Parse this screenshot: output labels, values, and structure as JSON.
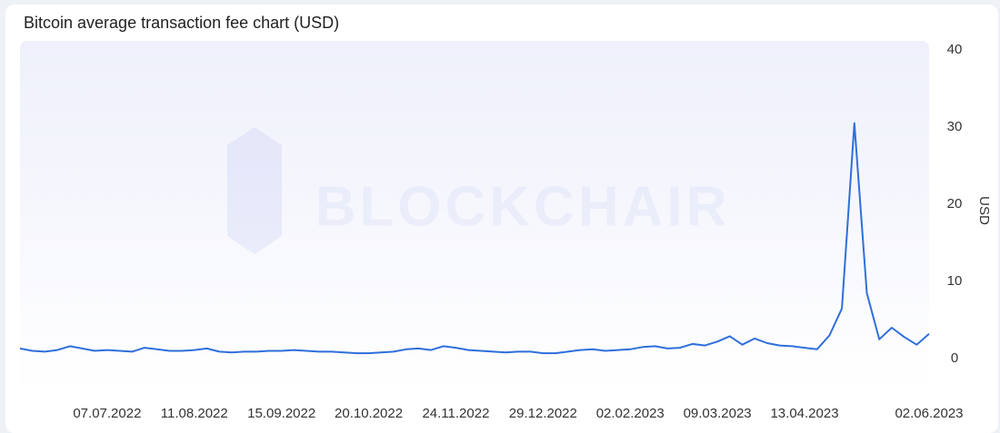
{
  "chart_data": {
    "type": "line",
    "title": "Bitcoin average transaction fee chart (USD)",
    "y_label": "USD",
    "watermark": "BLOCKCHAIR",
    "x": [
      "02.06.2022",
      "07.06.2022",
      "12.06.2022",
      "17.06.2022",
      "22.06.2022",
      "27.06.2022",
      "02.07.2022",
      "07.07.2022",
      "12.07.2022",
      "17.07.2022",
      "22.07.2022",
      "27.07.2022",
      "01.08.2022",
      "06.08.2022",
      "11.08.2022",
      "16.08.2022",
      "21.08.2022",
      "26.08.2022",
      "31.08.2022",
      "05.09.2022",
      "10.09.2022",
      "15.09.2022",
      "20.09.2022",
      "25.09.2022",
      "30.09.2022",
      "05.10.2022",
      "10.10.2022",
      "15.10.2022",
      "20.10.2022",
      "25.10.2022",
      "30.10.2022",
      "04.11.2022",
      "09.11.2022",
      "14.11.2022",
      "19.11.2022",
      "24.11.2022",
      "29.11.2022",
      "04.12.2022",
      "09.12.2022",
      "14.12.2022",
      "19.12.2022",
      "24.12.2022",
      "29.12.2022",
      "03.01.2023",
      "08.01.2023",
      "13.01.2023",
      "18.01.2023",
      "23.01.2023",
      "28.01.2023",
      "02.02.2023",
      "07.02.2023",
      "12.02.2023",
      "17.02.2023",
      "22.02.2023",
      "27.02.2023",
      "04.03.2023",
      "09.03.2023",
      "14.03.2023",
      "19.03.2023",
      "24.03.2023",
      "29.03.2023",
      "03.04.2023",
      "08.04.2023",
      "13.04.2023",
      "18.04.2023",
      "23.04.2023",
      "28.04.2023",
      "03.05.2023",
      "08.05.2023",
      "13.05.2023",
      "18.05.2023",
      "23.05.2023",
      "28.05.2023",
      "02.06.2023"
    ],
    "series": [
      {
        "name": "Average transaction fee",
        "color": "#2f6fdb",
        "values": [
          1.3,
          1.0,
          0.9,
          1.1,
          1.6,
          1.3,
          1.0,
          1.1,
          1.0,
          0.9,
          1.4,
          1.2,
          1.0,
          1.0,
          1.1,
          1.3,
          0.9,
          0.8,
          0.9,
          0.9,
          1.0,
          1.0,
          1.1,
          1.0,
          0.9,
          0.9,
          0.8,
          0.7,
          0.7,
          0.8,
          0.9,
          1.2,
          1.3,
          1.1,
          1.6,
          1.4,
          1.1,
          1.0,
          0.9,
          0.8,
          0.9,
          0.9,
          0.7,
          0.7,
          0.9,
          1.1,
          1.2,
          1.0,
          1.1,
          1.2,
          1.5,
          1.6,
          1.3,
          1.4,
          1.9,
          1.7,
          2.2,
          2.9,
          1.8,
          2.6,
          2.0,
          1.7,
          1.6,
          1.4,
          1.2,
          3.0,
          6.5,
          30.5,
          8.5,
          2.5,
          4.0,
          2.8,
          1.8,
          3.2
        ]
      }
    ],
    "xlim": [
      "02.06.2022",
      "02.06.2023"
    ],
    "xticks": [
      "07.07.2022",
      "11.08.2022",
      "15.09.2022",
      "20.10.2022",
      "24.11.2022",
      "29.12.2022",
      "02.02.2023",
      "09.03.2023",
      "13.04.2023",
      "02.06.2023"
    ],
    "ylim": [
      0,
      40
    ],
    "yticks": [
      0,
      10,
      20,
      30,
      40
    ]
  }
}
